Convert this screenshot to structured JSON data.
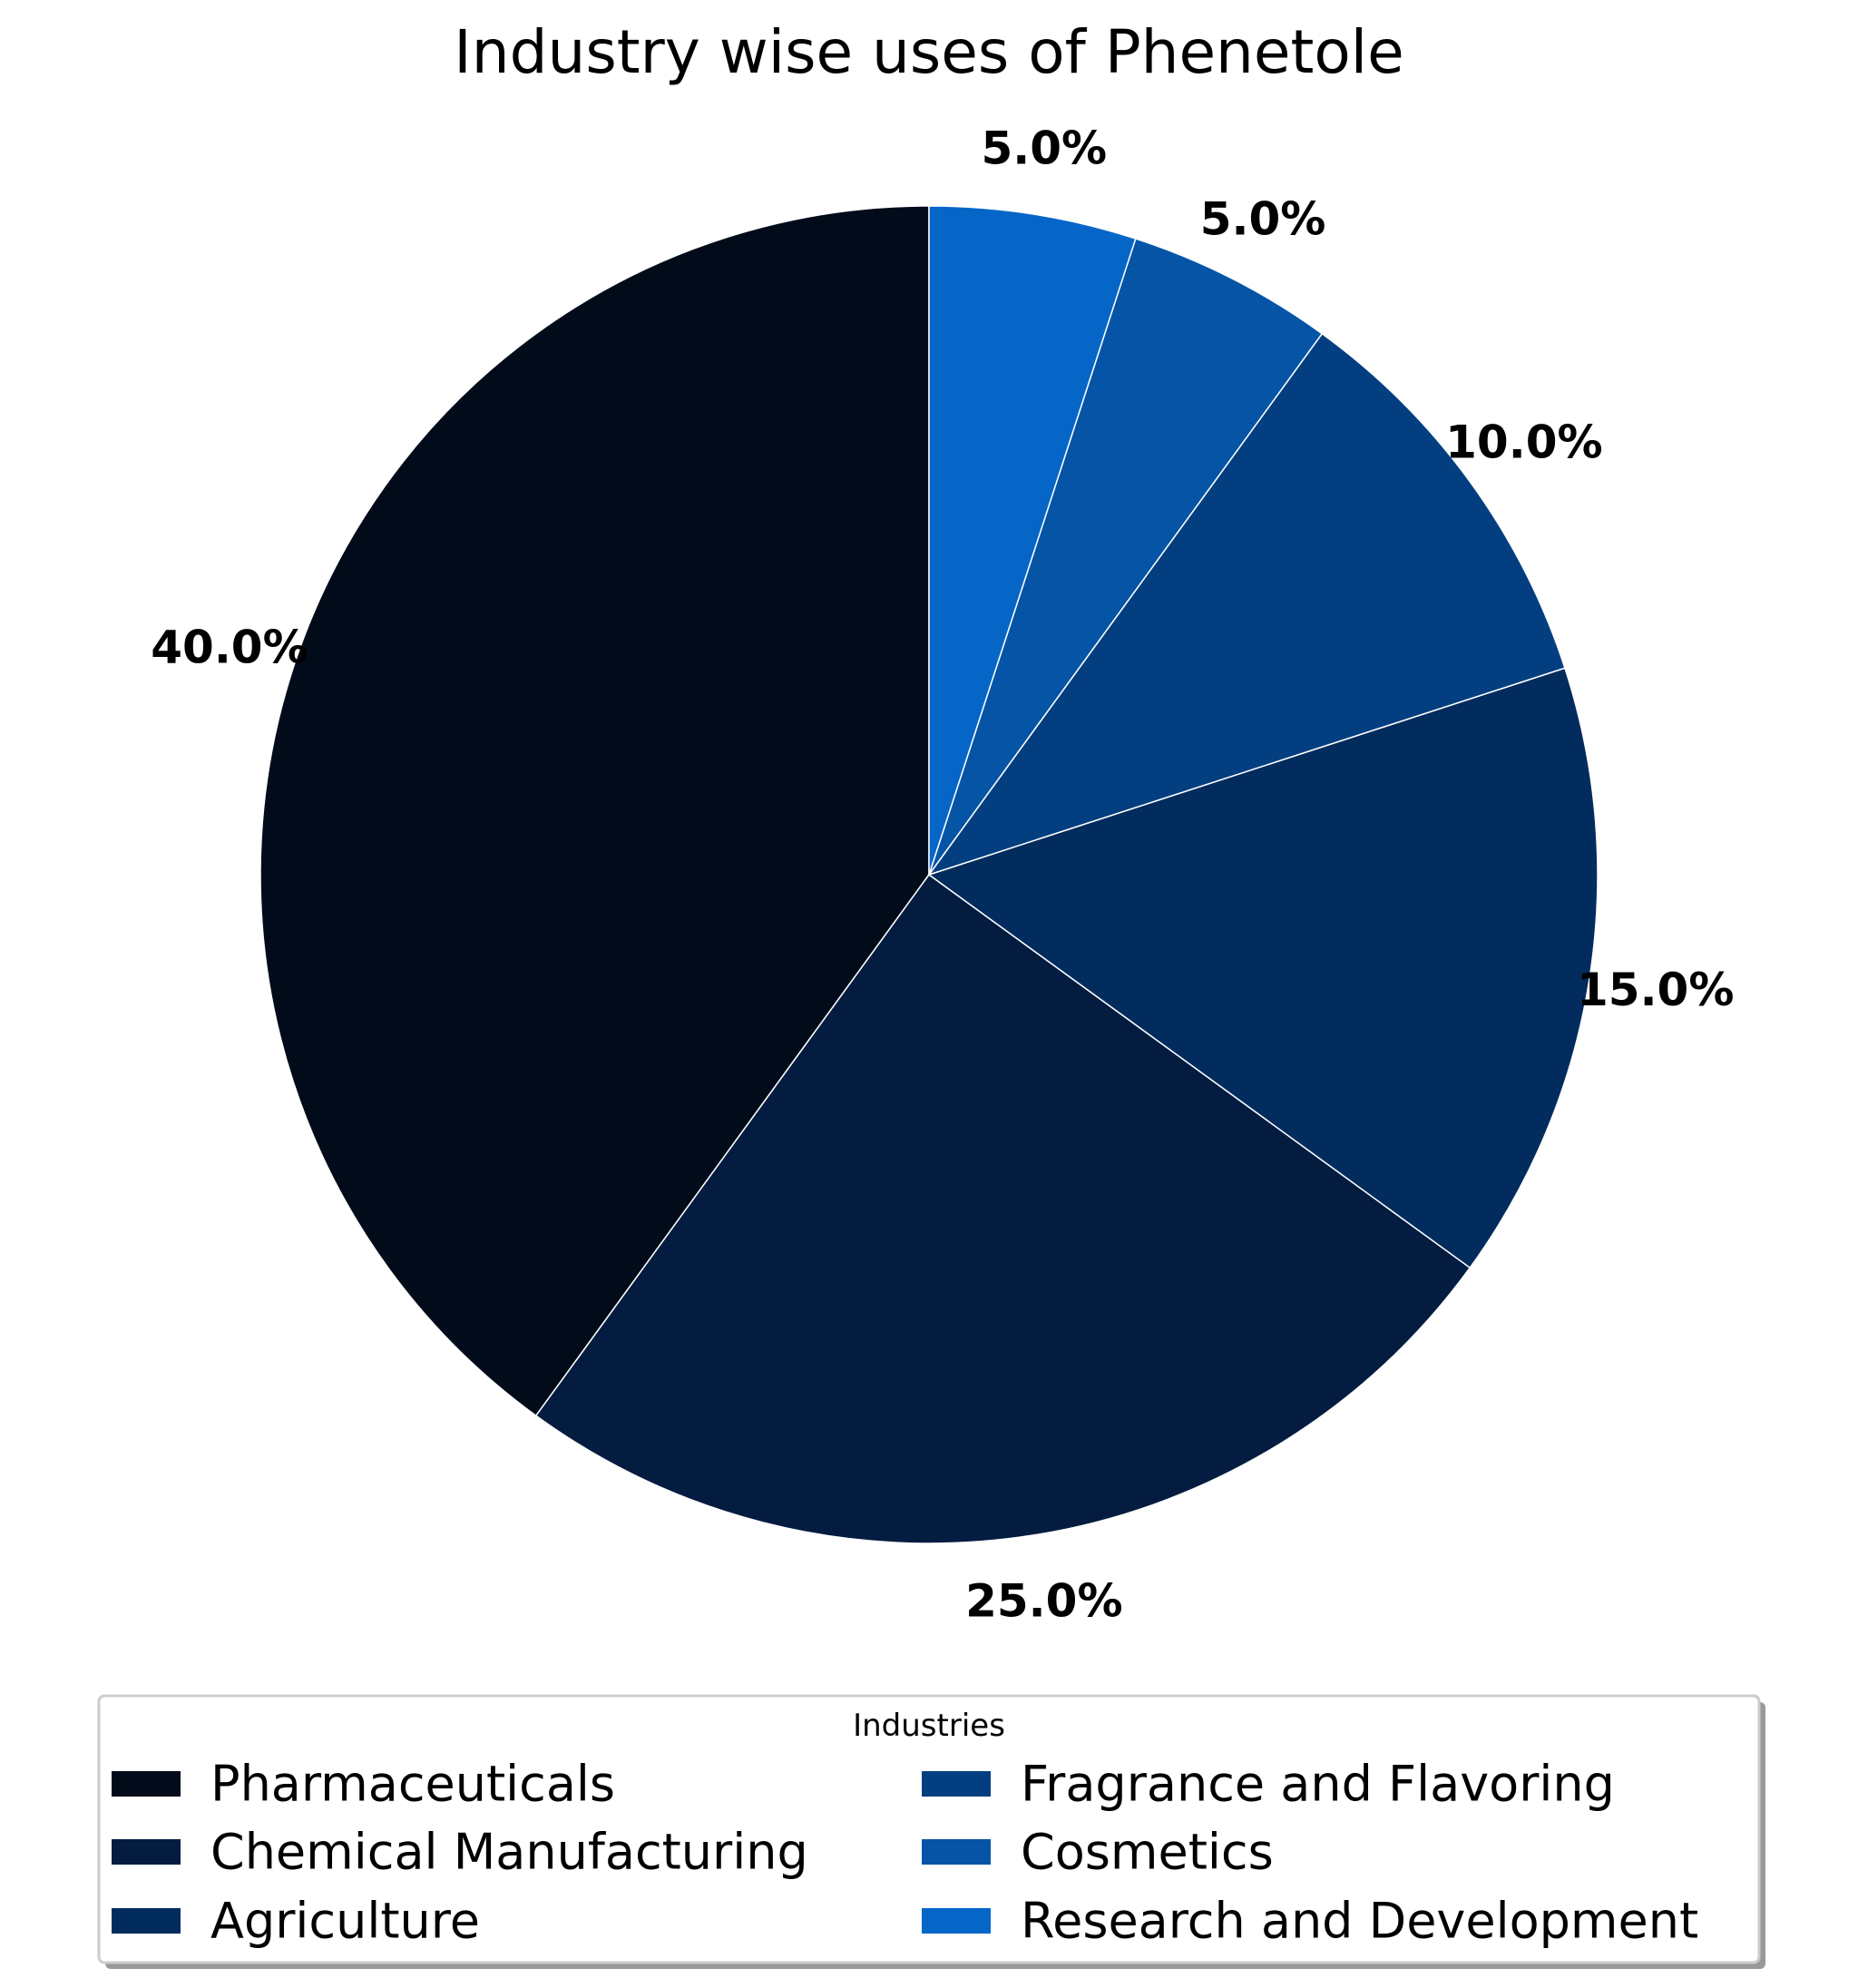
{
  "chart_data": {
    "type": "pie",
    "title": "Industry wise uses of Phenetole",
    "start_angle_deg": 90,
    "direction": "counterclockwise",
    "slices": [
      {
        "label": "Pharmaceuticals",
        "value": 40.0,
        "pct_label": "40.0%",
        "color": "#020b1a"
      },
      {
        "label": "Chemical Manufacturing",
        "value": 25.0,
        "pct_label": "25.0%",
        "color": "#031c40"
      },
      {
        "label": "Agriculture",
        "value": 15.0,
        "pct_label": "15.0%",
        "color": "#032c5e"
      },
      {
        "label": "Fragrance and Flavoring",
        "value": 10.0,
        "pct_label": "10.0%",
        "color": "#033f80"
      },
      {
        "label": "Cosmetics",
        "value": 5.0,
        "pct_label": "5.0%",
        "color": "#0554a6"
      },
      {
        "label": "Research and Development",
        "value": 5.0,
        "pct_label": "5.0%",
        "color": "#0566c8"
      }
    ],
    "legend": {
      "title": "Industries",
      "placement": "bottom-center",
      "columns": 2
    }
  }
}
